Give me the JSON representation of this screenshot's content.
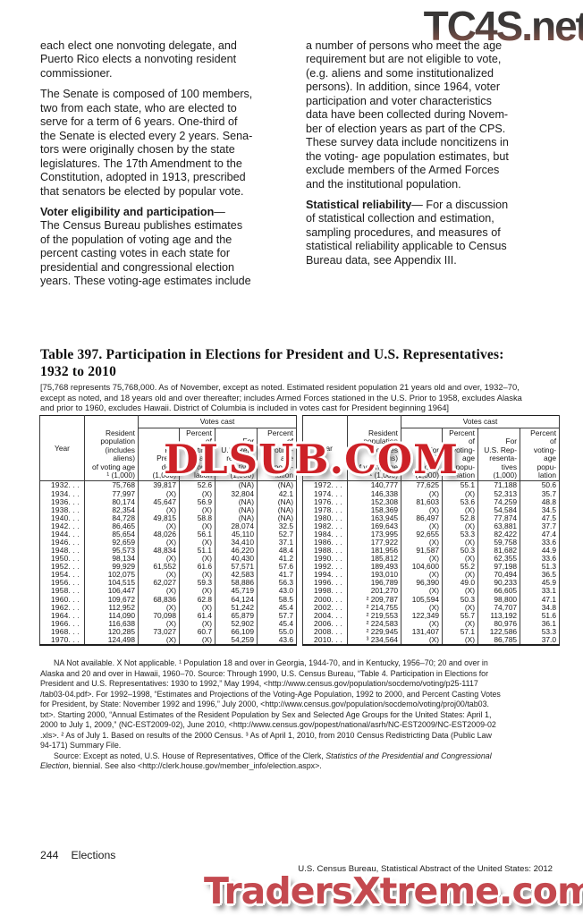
{
  "watermarks": {
    "top_right": "TC4S.net",
    "center": "DLSUB.COM",
    "bottom": "TradersXtreme.com",
    "red_color": "#cd2127",
    "gradient_dark": "#353535",
    "gradient_rust": "#9a5a4e"
  },
  "body": {
    "left_col": {
      "p1": "each elect one nonvoting delegate, and\nPuerto Rico elects a nonvoting resident\ncommissioner.",
      "p2": "The Senate is composed of 100 members,\ntwo from each state, who are elected to\nserve for a term of 6 years. One-third of\nthe Senate is elected every 2 years. Sena-\ntors were originally chosen by the state\nlegislatures. The 17th Amendment to the\nConstitution, adopted in 1913, prescribed\nthat senators be elected by popular vote.",
      "p3_heading": "Voter eligibility and participation",
      "p3_rest": "—\nThe Census Bureau publishes estimates\nof the population of voting age and the\npercent casting votes in each state for\npresidential and congressional election\nyears. These voting-age estimates include"
    },
    "right_col": {
      "p1": "a number of persons who meet the age\nrequirement but are not eligible to vote,\n(e.g. aliens and some institutionalized\npersons). In addition, since 1964, voter\nparticipation and voter characteristics\ndata have been collected during Novem-\nber of election years as part of the CPS.\nThese survey data include noncitizens in\nthe voting- age population estimates, but\nexclude members of the Armed Forces\nand the institutional population.",
      "p2_heading": "Statistical reliability",
      "p2_rest": "— For a discussion\nof statistical collection and estimation,\nsampling procedures, and measures of\nstatistical reliability applicable to Census\nBureau data, see Appendix III."
    }
  },
  "table": {
    "title": "Table 397. Participation in Elections for President and U.S. Representatives:\n1932 to 2010",
    "note": "[75,768 represents 75,768,000. As of November, except as noted. Estimated resident population 21 years old and over, 1932–70,\nexcept as noted, and 18 years old and over thereafter; includes Armed Forces stationed in the U.S. Prior to 1958, excludes Alaska\nand prior to 1960, excludes Hawaii. District of Columbia is included in votes cast for President beginning 1964]",
    "header": {
      "year": "Year",
      "population": "Resident\npopulation\n(includes\naliens)\nof voting age\n¹ (1,000)",
      "votes_cast": "Votes cast",
      "for_president": "For\nPresi-\ndent\n(1,000)",
      "pct_voting_age_1": "Percent\nof\nvoting-\nage\npopu-\nlation",
      "for_representatives": "For\nU.S. Rep-\nresenta-\ntives\n(1,000)",
      "pct_voting_age_2": "Percent\nof\nvoting-\nage\npopu-\nlation"
    },
    "left_rows": [
      [
        "1932. . .",
        "75,768",
        "39,817",
        "52.6",
        "(NA)",
        "(NA)"
      ],
      [
        "1934. . .",
        "77,997",
        "(X)",
        "(X)",
        "32,804",
        "42.1"
      ],
      [
        "1936. . .",
        "80,174",
        "45,647",
        "56.9",
        "(NA)",
        "(NA)"
      ],
      [
        "1938. . .",
        "82,354",
        "(X)",
        "(X)",
        "(NA)",
        "(NA)"
      ],
      [
        "1940. . .",
        "84,728",
        "49,815",
        "58.8",
        "(NA)",
        "(NA)"
      ],
      [
        "1942. . .",
        "86,465",
        "(X)",
        "(X)",
        "28,074",
        "32.5"
      ],
      [
        "1944. . .",
        "85,654",
        "48,026",
        "56.1",
        "45,110",
        "52.7"
      ],
      [
        "1946. . .",
        "92,659",
        "(X)",
        "(X)",
        "34,410",
        "37.1"
      ],
      [
        "1948. . .",
        "95,573",
        "48,834",
        "51.1",
        "46,220",
        "48.4"
      ],
      [
        "1950. . .",
        "98,134",
        "(X)",
        "(X)",
        "40,430",
        "41.2"
      ],
      [
        "1952. . .",
        "99,929",
        "61,552",
        "61.6",
        "57,571",
        "57.6"
      ],
      [
        "1954. . .",
        "102,075",
        "(X)",
        "(X)",
        "42,583",
        "41.7"
      ],
      [
        "1956. . .",
        "104,515",
        "62,027",
        "59.3",
        "58,886",
        "56.3"
      ],
      [
        "1958. . .",
        "106,447",
        "(X)",
        "(X)",
        "45,719",
        "43.0"
      ],
      [
        "1960. . .",
        "109,672",
        "68,836",
        "62.8",
        "64,124",
        "58.5"
      ],
      [
        "1962. . .",
        "112,952",
        "(X)",
        "(X)",
        "51,242",
        "45.4"
      ],
      [
        "1964. . .",
        "114,090",
        "70,098",
        "61.4",
        "65,879",
        "57.7"
      ],
      [
        "1966. . .",
        "116,638",
        "(X)",
        "(X)",
        "52,902",
        "45.4"
      ],
      [
        "1968. . .",
        "120,285",
        "73,027",
        "60.7",
        "66,109",
        "55.0"
      ],
      [
        "1970. . .",
        "124,498",
        "(X)",
        "(X)",
        "54,259",
        "43.6"
      ]
    ],
    "right_rows": [
      [
        "1972. . .",
        "140,777",
        "77,625",
        "55.1",
        "71,188",
        "50.6"
      ],
      [
        "1974. . .",
        "146,338",
        "(X)",
        "(X)",
        "52,313",
        "35.7"
      ],
      [
        "1976. . .",
        "152,308",
        "81,603",
        "53.6",
        "74,259",
        "48.8"
      ],
      [
        "1978. . .",
        "158,369",
        "(X)",
        "(X)",
        "54,584",
        "34.5"
      ],
      [
        "1980. . .",
        "163,945",
        "86,497",
        "52.8",
        "77,874",
        "47.5"
      ],
      [
        "1982. . .",
        "169,643",
        "(X)",
        "(X)",
        "63,881",
        "37.7"
      ],
      [
        "1984. . .",
        "173,995",
        "92,655",
        "53.3",
        "82,422",
        "47.4"
      ],
      [
        "1986. . .",
        "177,922",
        "(X)",
        "(X)",
        "59,758",
        "33.6"
      ],
      [
        "1988. . .",
        "181,956",
        "91,587",
        "50.3",
        "81,682",
        "44.9"
      ],
      [
        "1990. . .",
        "185,812",
        "(X)",
        "(X)",
        "62,355",
        "33.6"
      ],
      [
        "1992. . .",
        "189,493",
        "104,600",
        "55.2",
        "97,198",
        "51.3"
      ],
      [
        "1994. . .",
        "193,010",
        "(X)",
        "(X)",
        "70,494",
        "36.5"
      ],
      [
        "1996. . .",
        "196,789",
        "96,390",
        "49.0",
        "90,233",
        "45.9"
      ],
      [
        "1998. . .",
        "201,270",
        "(X)",
        "(X)",
        "66,605",
        "33.1"
      ],
      [
        "2000. . .",
        "² 209,787",
        "105,594",
        "50.3",
        "98,800",
        "47.1"
      ],
      [
        "2002. . .",
        "² 214,755",
        "(X)",
        "(X)",
        "74,707",
        "34.8"
      ],
      [
        "2004. . .",
        "² 219,553",
        "122,349",
        "55.7",
        "113,192",
        "51.6"
      ],
      [
        "2006. . .",
        "² 224,583",
        "(X)",
        "(X)",
        "80,976",
        "36.1"
      ],
      [
        "2008. . .",
        "² 229,945",
        "131,407",
        "57.1",
        "122,586",
        "53.3"
      ],
      [
        "2010. . .",
        "³ 234,564",
        "(X)",
        "(X)",
        "86,785",
        "37.0"
      ]
    ]
  },
  "footnotes": {
    "fn1": "NA Not available. X Not applicable. ¹ Population 18 and over in Georgia, 1944-70, and in Kentucky, 1956–70; 20 and over in\nAlaska and 20 and over in Hawaii, 1960–70. Source: Through 1990, U.S. Census Bureau, “Table 4. Participation in Elections for\nPresident and U.S. Representatives: 1930 to 1992,” May 1994, <http://www.census.gov/population/socdemo/voting/p25-1117\n/tab03-04.pdf>. For 1992–1998, “Estimates and Projections of the Voting-Age Population, 1992 to 2000, and Percent Casting Votes\nfor President, by State: November 1992 and 1996,” July 2000, <http://www.census.gov/population/socdemo/voting/proj00/tab03.\ntxt>. Starting 2000, “Annual Estimates of the Resident Population by Sex and Selected Age Groups for the United States: April 1,\n2000 to July 1, 2009,” (NC-EST2009-02), June 2010, <http://www.census.gov/popest/national/asrh/NC-EST2009/NC-EST2009-02\n.xls>. ² As of July 1. Based on results of the 2000 Census. ³ As of April 1, 2010, from 2010 Census Redistricting Data (Public Law\n94-171) Summary File.",
    "source_prefix": "Source: Except as noted, U.S. House of Representatives, Office of the Clerk, ",
    "source_italic": "Statistics of the Presidential and Congressional\nElection,",
    "source_suffix": " biennial. See also <http://clerk.house.gov/member_info/election.aspx>."
  },
  "footer": {
    "page_number": "244",
    "section": "Elections",
    "attribution": "U.S. Census Bureau, Statistical Abstract of the United States: 2012"
  }
}
